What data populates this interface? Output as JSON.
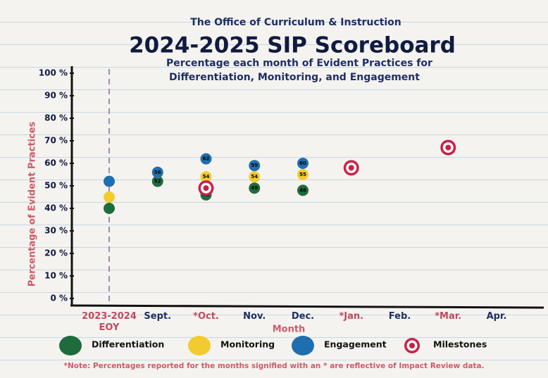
{
  "chart_data": {
    "type": "scatter",
    "pretitle": "The Office of Curriculum & Instruction",
    "title": "2024-2025 SIP Scoreboard",
    "subtitle": [
      "Percentage each month of Evident Practices for",
      "Differentiation, Monitoring, and Engagement"
    ],
    "y_label": "Percentage of Evident Practices",
    "x_label": "Month",
    "categories": [
      "2023-2024 EOY",
      "Sept.",
      "*Oct.",
      "Nov.",
      "Dec.",
      "*Jan.",
      "Feb.",
      "*Mar.",
      "Apr."
    ],
    "category_colors": [
      "#c04a5e",
      "#1f2f66",
      "#c04a5e",
      "#1f2f66",
      "#1f2f66",
      "#c04a5e",
      "#1f2f66",
      "#c04a5e",
      "#1f2f66"
    ],
    "ylim": [
      0,
      100
    ],
    "yticks": [
      {
        "value": 0,
        "label": "0 %"
      },
      {
        "value": 10,
        "label": "10 %"
      },
      {
        "value": 20,
        "label": "20 %"
      },
      {
        "value": 30,
        "label": "30 %"
      },
      {
        "value": 40,
        "label": "40 %"
      },
      {
        "value": 50,
        "label": "50 %"
      },
      {
        "value": 60,
        "label": "60 %"
      },
      {
        "value": 70,
        "label": "70 %"
      },
      {
        "value": 80,
        "label": "80 %"
      },
      {
        "value": 90,
        "label": "90 %"
      },
      {
        "value": 100,
        "label": "100 %"
      }
    ],
    "series": [
      {
        "name": "Differentiation",
        "color": "#1e6b3e",
        "marker": "dot",
        "values": [
          40,
          52,
          46,
          49,
          48,
          null,
          null,
          null,
          null
        ],
        "value_labels": [
          null,
          "52",
          "46",
          "49",
          "48",
          null,
          null,
          null,
          null
        ]
      },
      {
        "name": "Monitoring",
        "color": "#f2cc2e",
        "marker": "dot",
        "values": [
          45,
          56,
          54,
          54,
          55,
          null,
          null,
          null,
          null
        ],
        "value_labels": [
          null,
          "56",
          "54",
          "54",
          "55",
          null,
          null,
          null,
          null
        ]
      },
      {
        "name": "Engagement",
        "color": "#1f6fae",
        "marker": "dot",
        "values": [
          52,
          56,
          62,
          59,
          60,
          null,
          null,
          null,
          null
        ],
        "value_labels": [
          null,
          "56",
          "62",
          "59",
          "60",
          null,
          null,
          null,
          null
        ]
      },
      {
        "name": "Milestones",
        "color": "#c8204a",
        "marker": "target",
        "values": [
          null,
          null,
          49,
          null,
          null,
          58,
          null,
          67,
          null
        ]
      }
    ],
    "note": "*Note: Percentages reported for the months signified with an * are reflective of Impact Review data."
  }
}
